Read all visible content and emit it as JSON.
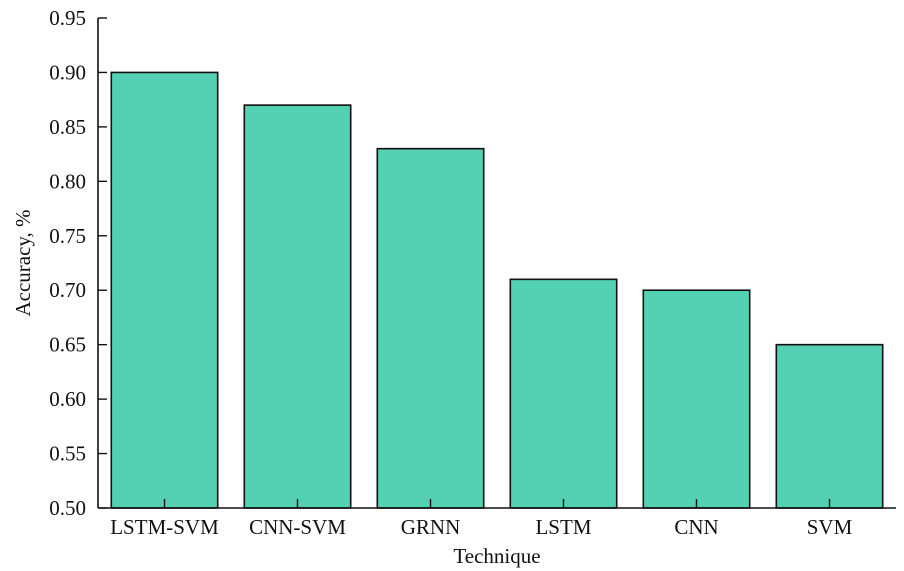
{
  "chart_data": {
    "type": "bar",
    "xlabel": "Technique",
    "ylabel": "Accuracy, %",
    "categories": [
      "LSTM-SVM",
      "CNN-SVM",
      "GRNN",
      "LSTM",
      "CNN",
      "SVM"
    ],
    "values": [
      0.9,
      0.87,
      0.83,
      0.71,
      0.7,
      0.65
    ],
    "ylim": [
      0.5,
      0.95
    ],
    "yticks": [
      "0.50",
      "0.55",
      "0.60",
      "0.65",
      "0.70",
      "0.75",
      "0.80",
      "0.85",
      "0.90",
      "0.95"
    ],
    "grid": false,
    "colors": {
      "bar_fill": "#54d0b2",
      "bar_stroke": "#111111",
      "axis": "#111111"
    }
  }
}
